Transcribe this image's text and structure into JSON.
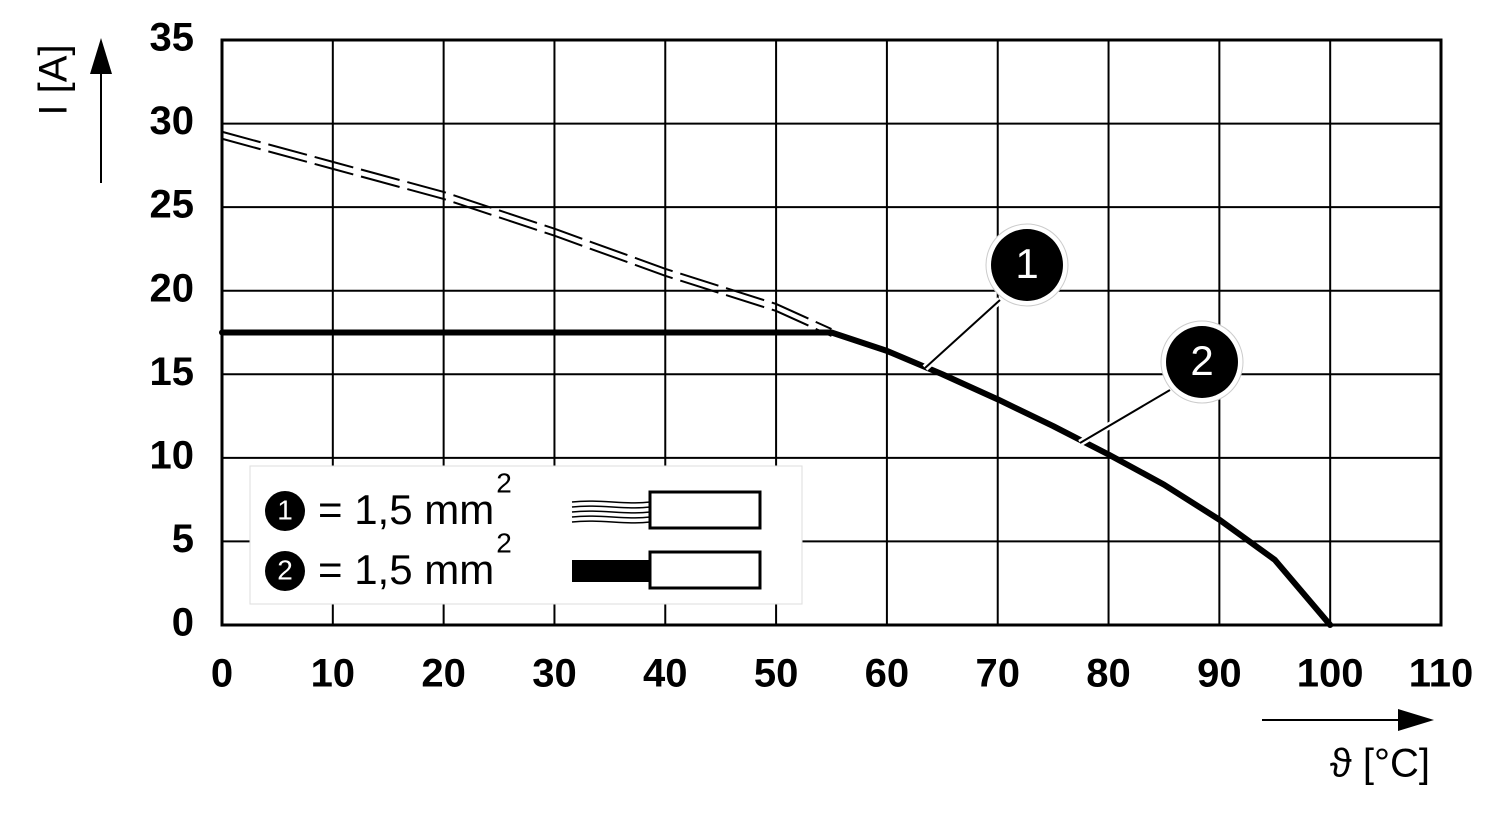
{
  "chart_data": {
    "type": "line",
    "y_label": "I [A]",
    "x_label": "ϑ [°C]",
    "xlim": [
      0,
      110
    ],
    "xticks": [
      0,
      10,
      20,
      30,
      40,
      50,
      60,
      70,
      80,
      90,
      100,
      110
    ],
    "ylim": [
      0,
      35
    ],
    "yticks": [
      0,
      5,
      10,
      15,
      20,
      25,
      30,
      35
    ],
    "grid": true,
    "series": [
      {
        "color": "#000000",
        "style": "dashed",
        "x": [
          0,
          10,
          20,
          30,
          40,
          50,
          55
        ],
        "values": [
          29.3,
          27.5,
          25.7,
          23.5,
          21.1,
          19.0,
          17.5
        ]
      },
      {
        "color": "#000000",
        "style": "solid",
        "x": [
          0,
          55,
          60,
          65,
          70,
          75,
          80,
          85,
          90,
          95,
          100
        ],
        "values": [
          17.5,
          17.5,
          16.4,
          15.0,
          13.5,
          11.9,
          10.2,
          8.4,
          6.3,
          3.9,
          0
        ]
      }
    ],
    "annotations": [
      {
        "label": "1"
      },
      {
        "label": "2"
      }
    ],
    "legend": [
      {
        "marker": "1",
        "text": "= 1,5 mm",
        "sup": "2"
      },
      {
        "marker": "2",
        "text": "= 1,5 mm",
        "sup": "2"
      }
    ]
  }
}
